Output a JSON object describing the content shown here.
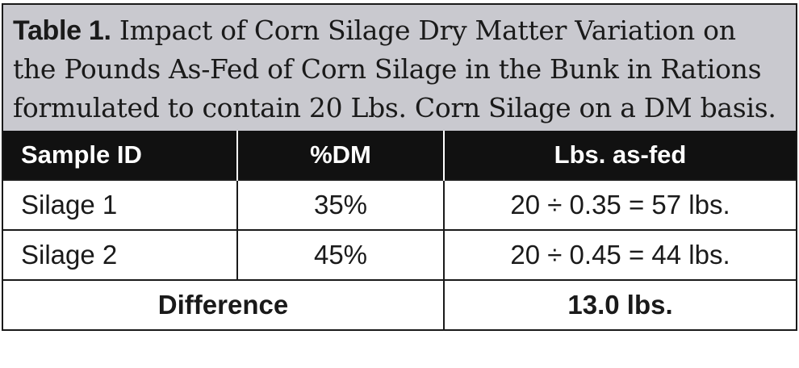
{
  "table": {
    "caption_label": "Table 1.",
    "caption_text": "Impact of Corn Silage Dry Matter Variation on the Pounds As-Fed of Corn Silage in the Bunk in Rations formulated to contain 20 Lbs. Corn Silage on a DM basis.",
    "headers": [
      "Sample ID",
      "%DM",
      "Lbs. as-fed"
    ],
    "rows": [
      [
        "Silage 1",
        "35%",
        "20 ÷ 0.35 = 57 lbs."
      ],
      [
        "Silage 2",
        "45%",
        "20 ÷ 0.45 = 44 lbs."
      ]
    ],
    "total": {
      "label": "Difference",
      "value": "13.0 lbs."
    }
  }
}
